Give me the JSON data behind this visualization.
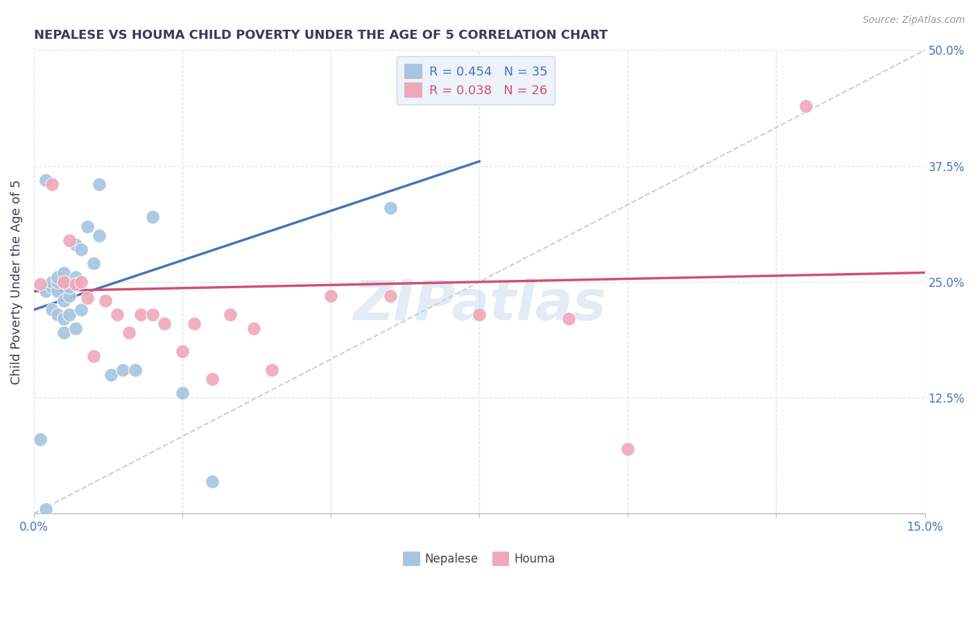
{
  "title": "NEPALESE VS HOUMA CHILD POVERTY UNDER THE AGE OF 5 CORRELATION CHART",
  "source": "Source: ZipAtlas.com",
  "ylabel": "Child Poverty Under the Age of 5",
  "xlim": [
    0.0,
    0.15
  ],
  "ylim": [
    0.0,
    0.5
  ],
  "xticks": [
    0.0,
    0.025,
    0.05,
    0.075,
    0.1,
    0.125,
    0.15
  ],
  "yticks": [
    0.0,
    0.125,
    0.25,
    0.375,
    0.5
  ],
  "nepalese_R": 0.454,
  "nepalese_N": 35,
  "houma_R": 0.038,
  "houma_N": 26,
  "nepalese_color": "#a8c4e0",
  "houma_color": "#f0a8b8",
  "nepalese_line_color": "#4472c4",
  "houma_line_color": "#d05070",
  "diagonal_line_color": "#b0c8d8",
  "background_color": "#ffffff",
  "grid_color": "#d8e4f0",
  "title_color": "#3a3a5a",
  "axis_tick_color": "#4472c4",
  "legend_box_color": "#eef2fa",
  "watermark_text": "ZIPatlas",
  "watermark_color": "#c8d8ea",
  "nepalese_x": [
    0.001,
    0.002,
    0.002,
    0.003,
    0.003,
    0.003,
    0.004,
    0.004,
    0.004,
    0.004,
    0.005,
    0.005,
    0.005,
    0.005,
    0.005,
    0.006,
    0.006,
    0.006,
    0.007,
    0.007,
    0.007,
    0.008,
    0.008,
    0.009,
    0.01,
    0.011,
    0.011,
    0.013,
    0.015,
    0.017,
    0.02,
    0.025,
    0.03,
    0.06,
    0.002
  ],
  "nepalese_y": [
    0.08,
    0.24,
    0.005,
    0.22,
    0.245,
    0.25,
    0.215,
    0.24,
    0.25,
    0.255,
    0.195,
    0.21,
    0.23,
    0.25,
    0.26,
    0.215,
    0.235,
    0.245,
    0.2,
    0.255,
    0.29,
    0.22,
    0.285,
    0.31,
    0.27,
    0.3,
    0.355,
    0.15,
    0.155,
    0.155,
    0.32,
    0.13,
    0.035,
    0.33,
    0.36
  ],
  "houma_x": [
    0.001,
    0.003,
    0.005,
    0.006,
    0.007,
    0.008,
    0.009,
    0.01,
    0.012,
    0.014,
    0.016,
    0.018,
    0.02,
    0.022,
    0.025,
    0.027,
    0.03,
    0.033,
    0.037,
    0.04,
    0.05,
    0.06,
    0.075,
    0.09,
    0.1,
    0.13
  ],
  "houma_y": [
    0.248,
    0.355,
    0.25,
    0.295,
    0.248,
    0.25,
    0.233,
    0.17,
    0.23,
    0.215,
    0.195,
    0.215,
    0.215,
    0.205,
    0.175,
    0.205,
    0.145,
    0.215,
    0.2,
    0.155,
    0.235,
    0.235,
    0.215,
    0.21,
    0.07,
    0.44
  ]
}
